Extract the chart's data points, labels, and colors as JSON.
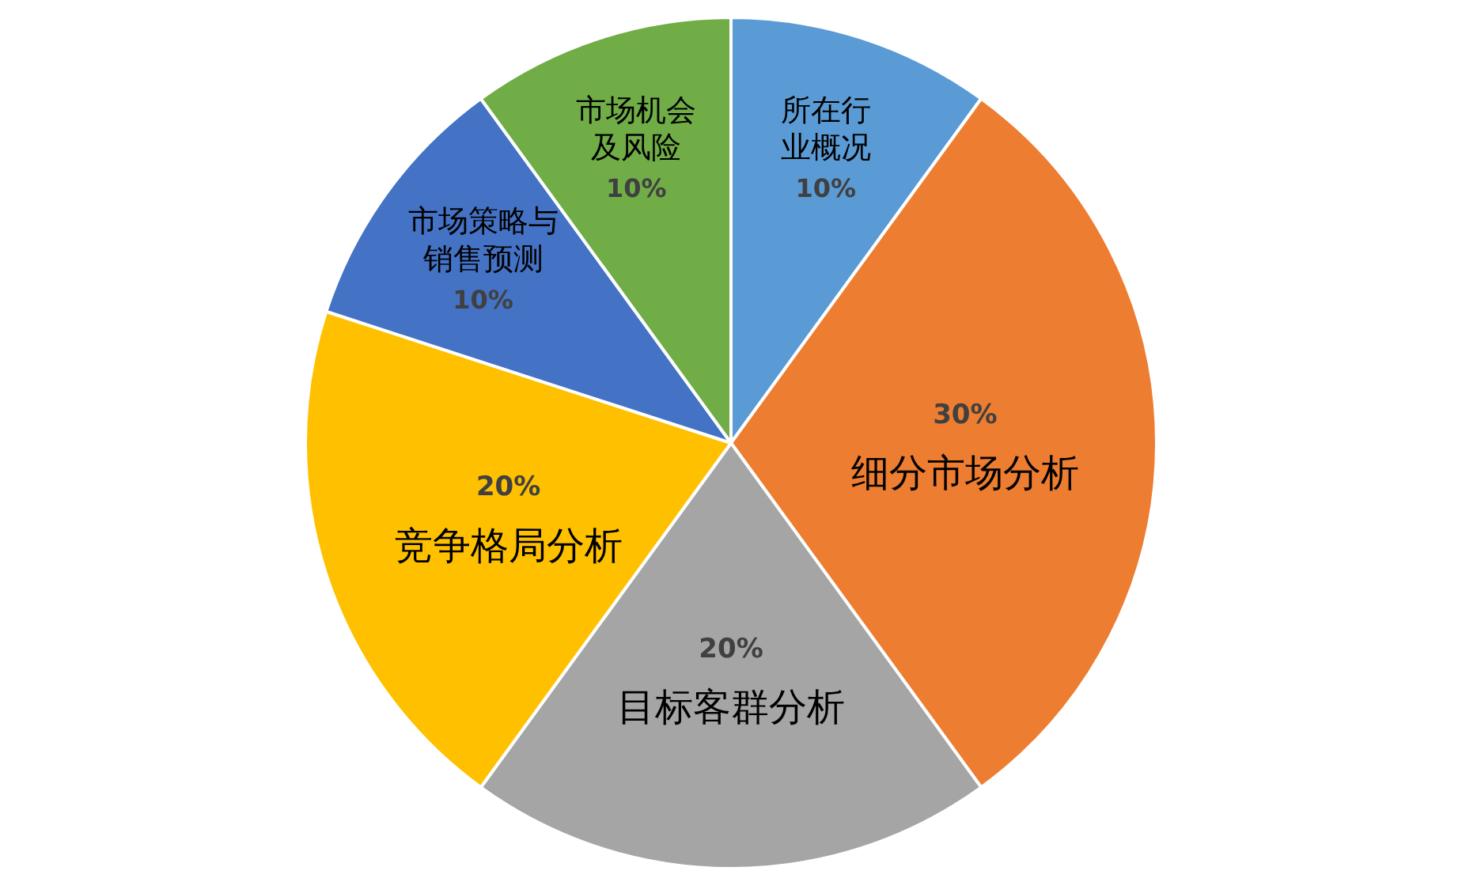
{
  "chart_data": {
    "type": "pie",
    "categories": [
      "所在行业概况",
      "细分市场分析",
      "目标客群分析",
      "竞争格局分析",
      "市场策略与销售预测",
      "市场机会及风险"
    ],
    "values": [
      10,
      30,
      20,
      20,
      10,
      10
    ],
    "colors": [
      "#5b9bd5",
      "#ed7d31",
      "#a5a5a5",
      "#ffc000",
      "#4472c4",
      "#70ad47"
    ],
    "value_labels": [
      "10%",
      "30%",
      "20%",
      "20%",
      "10%",
      "10%"
    ],
    "legend": false
  }
}
